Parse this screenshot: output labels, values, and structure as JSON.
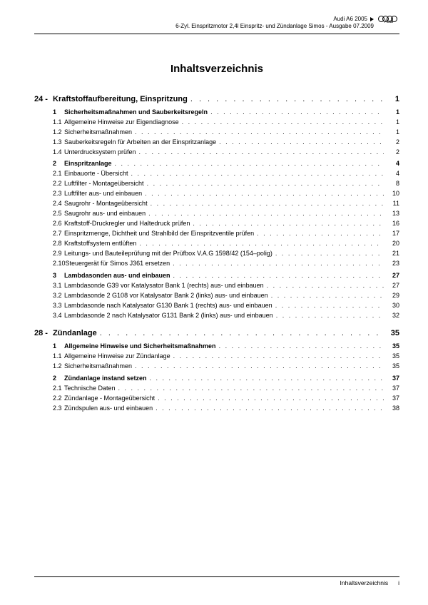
{
  "header": {
    "vehicle": "Audi A6 2005",
    "subtitle": "6-Zyl. Einspritzmotor 2,4l Einspritz- und Zündanlage Simos - Ausgabe 07.2009",
    "brand": "Audi"
  },
  "title": "Inhaltsverzeichnis",
  "chapters": [
    {
      "num": "24 -",
      "title": "Kraftstoffaufbereitung, Einspritzung",
      "page": "1",
      "groups": [
        {
          "section": {
            "num": "1",
            "title": "Sicherheitsmaßnahmen und Sauberkeitsregeln",
            "page": "1"
          },
          "subs": [
            {
              "num": "1.1",
              "title": "Allgemeine Hinweise zur Eigendiagnose",
              "page": "1"
            },
            {
              "num": "1.2",
              "title": "Sicherheitsmaßnahmen",
              "page": "1"
            },
            {
              "num": "1.3",
              "title": "Sauberkeitsregeln für Arbeiten an der Einspritzanlage",
              "page": "2"
            },
            {
              "num": "1.4",
              "title": "Unterdrucksystem prüfen",
              "page": "2"
            }
          ]
        },
        {
          "section": {
            "num": "2",
            "title": "Einspritzanlage",
            "page": "4"
          },
          "subs": [
            {
              "num": "2.1",
              "title": "Einbauorte - Übersicht",
              "page": "4"
            },
            {
              "num": "2.2",
              "title": "Luftfilter - Montageübersicht",
              "page": "8"
            },
            {
              "num": "2.3",
              "title": "Luftfilter aus- und einbauen",
              "page": "10"
            },
            {
              "num": "2.4",
              "title": "Saugrohr - Montageübersicht",
              "page": "11"
            },
            {
              "num": "2.5",
              "title": "Saugrohr aus- und einbauen",
              "page": "13"
            },
            {
              "num": "2.6",
              "title": "Kraftstoff-Druckregler und Haltedruck prüfen",
              "page": "16"
            },
            {
              "num": "2.7",
              "title": "Einspritzmenge, Dichtheit und Strahlbild der Einspritzventile prüfen",
              "page": "17"
            },
            {
              "num": "2.8",
              "title": "Kraftstoffsystem entlüften",
              "page": "20"
            },
            {
              "num": "2.9",
              "title": "Leitungs- und Bauteileprüfung mit der Prüfbox V.A.G 1598/42 (154–polig)",
              "page": "21"
            },
            {
              "num": "2.10",
              "title": "Steuergerät für Simos J361 ersetzen",
              "page": "23"
            }
          ]
        },
        {
          "section": {
            "num": "3",
            "title": "Lambdasonden aus- und einbauen",
            "page": "27"
          },
          "subs": [
            {
              "num": "3.1",
              "title": "Lambdasonde G39 vor Katalysator Bank 1 (rechts) aus- und einbauen",
              "page": "27"
            },
            {
              "num": "3.2",
              "title": "Lambdasonde 2 G108 vor Katalysator Bank 2 (links) aus- und einbauen",
              "page": "29"
            },
            {
              "num": "3.3",
              "title": "Lambdasonde nach Katalysator G130 Bank  1 (rechts) aus- und einbauen",
              "page": "30"
            },
            {
              "num": "3.4",
              "title": "Lambdasonde 2 nach Katalysator G131 Bank  2 (links) aus- und einbauen",
              "page": "32"
            }
          ]
        }
      ]
    },
    {
      "num": "28 -",
      "title": "Zündanlage",
      "page": "35",
      "groups": [
        {
          "section": {
            "num": "1",
            "title": "Allgemeine Hinweise und Sicherheitsmaßnahmen",
            "page": "35"
          },
          "subs": [
            {
              "num": "1.1",
              "title": "Allgemeine Hinweise zur Zündanlage",
              "page": "35"
            },
            {
              "num": "1.2",
              "title": "Sicherheitsmaßnahmen",
              "page": "35"
            }
          ]
        },
        {
          "section": {
            "num": "2",
            "title": "Zündanlage instand setzen",
            "page": "37"
          },
          "subs": [
            {
              "num": "2.1",
              "title": "Technische Daten",
              "page": "37"
            },
            {
              "num": "2.2",
              "title": "Zündanlage - Montageübersicht",
              "page": "37"
            },
            {
              "num": "2.3",
              "title": "Zündspulen aus- und einbauen",
              "page": "38"
            }
          ]
        }
      ]
    }
  ],
  "footer": {
    "label": "Inhaltsverzeichnis",
    "page": "i"
  }
}
